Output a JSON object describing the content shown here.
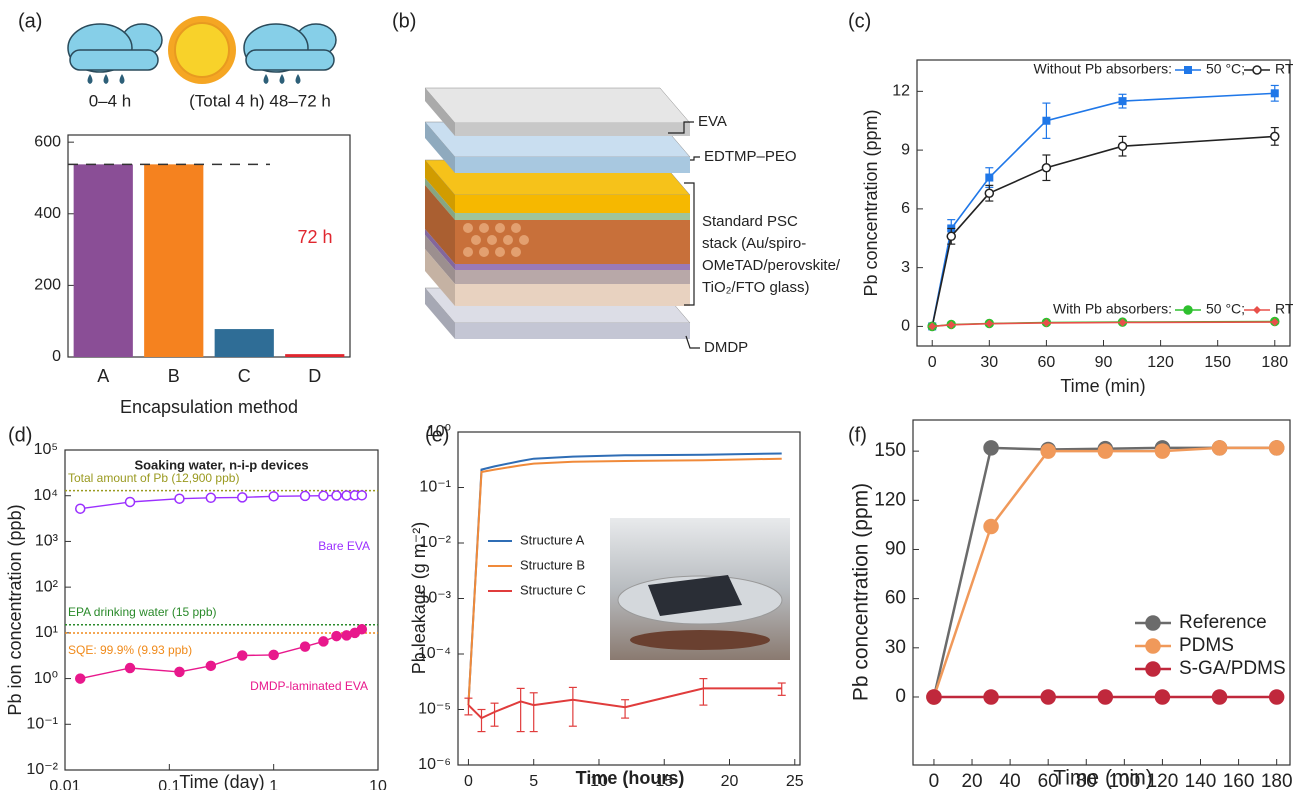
{
  "diagram": {
    "label": "(b)",
    "eva": "EVA",
    "edtmp": "EDTMP–PEO",
    "stack": [
      "Standard PSC",
      "stack (Au/spiro-",
      "OMeTAD/perovskite/",
      "TiO₂/FTO glass)"
    ],
    "dmdp": "DMDP"
  },
  "chart_data": [
    {
      "type": "bar",
      "label": "(a)",
      "icon_captions": [
        "0–4 h",
        "(Total 4 h) 48–72 h"
      ],
      "categories": [
        "A",
        "B",
        "C",
        "D"
      ],
      "values": [
        538,
        538,
        78,
        8
      ],
      "colors": [
        "#8a4e96",
        "#f5821f",
        "#2f6d96",
        "#e0262e"
      ],
      "ylim": [
        0,
        620
      ],
      "yticks": [
        0,
        200,
        400,
        600
      ],
      "reference_line": 538,
      "annotation": "72 h",
      "x_label": "Encapsulation method"
    },
    {
      "type": "line",
      "label": "(c)",
      "x": [
        0,
        10,
        30,
        60,
        100,
        180
      ],
      "series": [
        {
          "name": "50 °C;",
          "color": "#1f77e8",
          "marker": "square",
          "values": [
            0,
            5.0,
            7.6,
            10.5,
            11.5,
            11.9
          ],
          "errors": [
            0,
            0.45,
            0.5,
            0.9,
            0.35,
            0.4
          ]
        },
        {
          "name": "RT",
          "color": "#222222",
          "marker": "circle-open",
          "values": [
            0,
            4.6,
            6.8,
            8.1,
            9.2,
            9.7
          ],
          "errors": [
            0,
            0.4,
            0.4,
            0.65,
            0.5,
            0.45
          ]
        },
        {
          "name": "50 °C;",
          "color": "#2ec02e",
          "marker": "circle",
          "values": [
            0,
            0.1,
            0.15,
            0.2,
            0.22,
            0.25
          ]
        },
        {
          "name": "RT",
          "color": "#e8504a",
          "marker": "diamond",
          "values": [
            0,
            0.08,
            0.14,
            0.18,
            0.2,
            0.22
          ]
        }
      ],
      "legend_titles": [
        "Without Pb absorbers:",
        "With Pb absorbers:"
      ],
      "xlim": [
        -8,
        188
      ],
      "ylim": [
        -1,
        13.6
      ],
      "xticks": [
        0,
        30,
        60,
        90,
        120,
        150,
        180
      ],
      "yticks": [
        0,
        3,
        6,
        9,
        12
      ],
      "x_label": "Time (min)",
      "y_label": "Pb concentration (ppm)"
    },
    {
      "type": "line",
      "label": "(d)",
      "title": "Soaking water, n-i-p devices",
      "xlog": true,
      "ylog": true,
      "x": [
        0.014,
        0.042,
        0.125,
        0.25,
        0.5,
        1,
        2,
        3,
        4,
        5,
        6,
        7
      ],
      "series": [
        {
          "name": "Bare EVA",
          "color": "#9b30ff",
          "marker": "circle-open",
          "values": [
            5200,
            7300,
            8600,
            9000,
            9200,
            9700,
            9900,
            10000,
            10100,
            10100,
            10200,
            10200
          ]
        },
        {
          "name": "DMDP-laminated EVA",
          "color": "#e8188c",
          "marker": "circle",
          "values": [
            1.0,
            1.7,
            1.4,
            1.9,
            3.2,
            3.3,
            5,
            6.5,
            8.5,
            8.8,
            10,
            12
          ]
        }
      ],
      "hlines": [
        {
          "value": 12900,
          "label": "Total amount of Pb (12,900 ppb)",
          "color": "#9a9a20"
        },
        {
          "value": 15,
          "label": "EPA drinking water (15 ppb)",
          "color": "#2a8a2a"
        },
        {
          "value": 9.93,
          "label": "SQE: 99.9% (9.93 ppb)",
          "color": "#f08a1a"
        }
      ],
      "xlim": [
        0.01,
        10
      ],
      "ylim": [
        0.01,
        100000
      ],
      "xticks": [
        0.01,
        0.1,
        1,
        10
      ],
      "yticks": [
        {
          "value": 0.01,
          "label": "10⁻²"
        },
        {
          "value": 0.1,
          "label": "10⁻¹"
        },
        {
          "value": 1,
          "label": "10⁰"
        },
        {
          "value": 10,
          "label": "10¹"
        },
        {
          "value": 100,
          "label": "10²"
        },
        {
          "value": 1000,
          "label": "10³"
        },
        {
          "value": 10000,
          "label": "10⁴"
        },
        {
          "value": 100000,
          "label": "10⁵"
        }
      ],
      "x_label": "Time (day)",
      "y_label": "Pb ion concentration (ppb)"
    },
    {
      "type": "line",
      "label": "(e)",
      "ylog": true,
      "x": [
        0,
        1,
        2,
        4,
        5,
        8,
        12,
        18,
        24
      ],
      "series": [
        {
          "name": "Structure A",
          "color": "#2f6db5",
          "values": [
            1.2e-05,
            0.21,
            0.24,
            0.3,
            0.33,
            0.36,
            0.38,
            0.39,
            0.41
          ]
        },
        {
          "name": "Structure B",
          "color": "#f08a3a",
          "values": [
            1.2e-05,
            0.19,
            0.21,
            0.25,
            0.27,
            0.29,
            0.3,
            0.31,
            0.33
          ]
        },
        {
          "name": "Structure C",
          "color": "#e03c3c",
          "values": [
            1.2e-05,
            7e-06,
            9e-06,
            1.4e-05,
            1.2e-05,
            1.5e-05,
            1.1e-05,
            2.4e-05,
            2.4e-05
          ],
          "errors": [
            4e-06,
            3e-06,
            4e-06,
            1e-05,
            8e-06,
            1e-05,
            4e-06,
            1.2e-05,
            6e-06
          ]
        }
      ],
      "xlim": [
        -0.8,
        25.4
      ],
      "ylim": [
        1e-06,
        1
      ],
      "xticks": [
        0,
        5,
        10,
        15,
        20,
        25
      ],
      "yticks": [
        {
          "value": 1e-06,
          "label": "10⁻⁶"
        },
        {
          "value": 1e-05,
          "label": "10⁻⁵"
        },
        {
          "value": 0.0001,
          "label": "10⁻⁴"
        },
        {
          "value": 0.001,
          "label": "10⁻³"
        },
        {
          "value": 0.01,
          "label": "10⁻²"
        },
        {
          "value": 0.1,
          "label": "10⁻¹"
        },
        {
          "value": 1,
          "label": "10⁰"
        }
      ],
      "x_label": "Time (hours)",
      "y_label": "Pb leakage (g m⁻²)"
    },
    {
      "type": "line",
      "label": "(f)",
      "x": [
        0,
        30,
        60,
        90,
        120,
        150,
        180
      ],
      "series": [
        {
          "name": "Reference",
          "color": "#6b6b6b",
          "marker": "circle",
          "values": [
            0,
            152,
            151,
            151.5,
            152,
            152,
            152
          ]
        },
        {
          "name": "PDMS",
          "color": "#f0995a",
          "marker": "circle",
          "values": [
            0,
            104,
            150,
            150,
            150,
            152,
            152
          ]
        },
        {
          "name": "S-GA/PDMS",
          "color": "#c0283c",
          "marker": "circle",
          "values": [
            0,
            0,
            0,
            0,
            0,
            0,
            0
          ]
        }
      ],
      "xlim": [
        -11,
        187
      ],
      "ylim": [
        -41.5,
        169
      ],
      "xticks": [
        0,
        20,
        40,
        60,
        80,
        100,
        120,
        140,
        160,
        180
      ],
      "yticks": [
        0,
        30,
        60,
        90,
        120,
        150
      ],
      "x_label": "Time (min)",
      "y_label": "Pb concentration (ppm)"
    }
  ]
}
